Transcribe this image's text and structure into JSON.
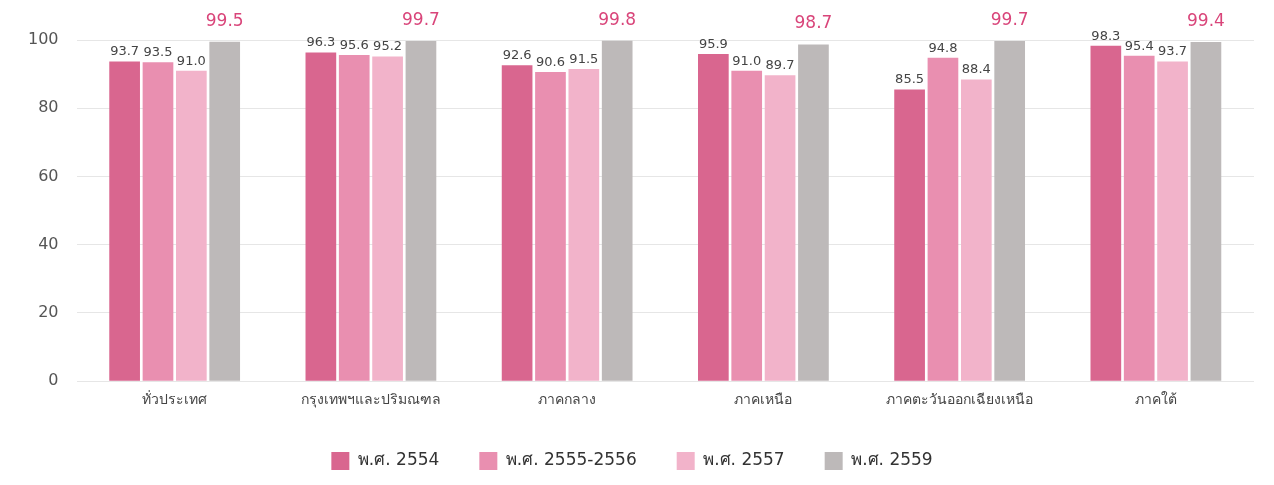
{
  "chart_data": {
    "type": "bar",
    "categories": [
      "ทั่วประเทศ",
      "กรุงเทพฯและปริมณฑล",
      "ภาคกลาง",
      "ภาคเหนือ",
      "ภาคตะวันออกเฉียงเหนือ",
      "ภาคใต้"
    ],
    "series": [
      {
        "name": "พ.ศ. 2554",
        "color": "#d9668f",
        "values": [
          93.7,
          96.3,
          92.6,
          95.9,
          85.5,
          98.3
        ],
        "value_labels": [
          "93.7",
          "96.3",
          "92.6",
          "95.9",
          "85.5",
          "98.3"
        ]
      },
      {
        "name": "พ.ศ. 2555-2556",
        "color": "#e98fb0",
        "values": [
          93.5,
          95.6,
          90.6,
          91.0,
          94.8,
          95.4
        ],
        "value_labels": [
          "93.5",
          "95.6",
          "90.6",
          "91.0",
          "94.8",
          "95.4"
        ]
      },
      {
        "name": "พ.ศ. 2557",
        "color": "#f2b3ca",
        "values": [
          91.0,
          95.2,
          91.5,
          89.7,
          88.4,
          93.7
        ],
        "value_labels": [
          "91.0",
          "95.2",
          "91.5",
          "89.7",
          "88.4",
          "93.7"
        ]
      },
      {
        "name": "พ.ศ. 2559",
        "color": "#bdb9b9",
        "values": [
          99.5,
          99.7,
          99.8,
          98.7,
          99.7,
          99.4
        ],
        "value_labels": [
          "99.5",
          "99.7",
          "99.8",
          "98.7",
          "99.7",
          "99.4"
        ]
      }
    ],
    "ylim": [
      0,
      100
    ],
    "yticks": [
      0,
      20,
      40,
      60,
      80,
      100
    ],
    "grid": "y",
    "legend": "bottom"
  }
}
